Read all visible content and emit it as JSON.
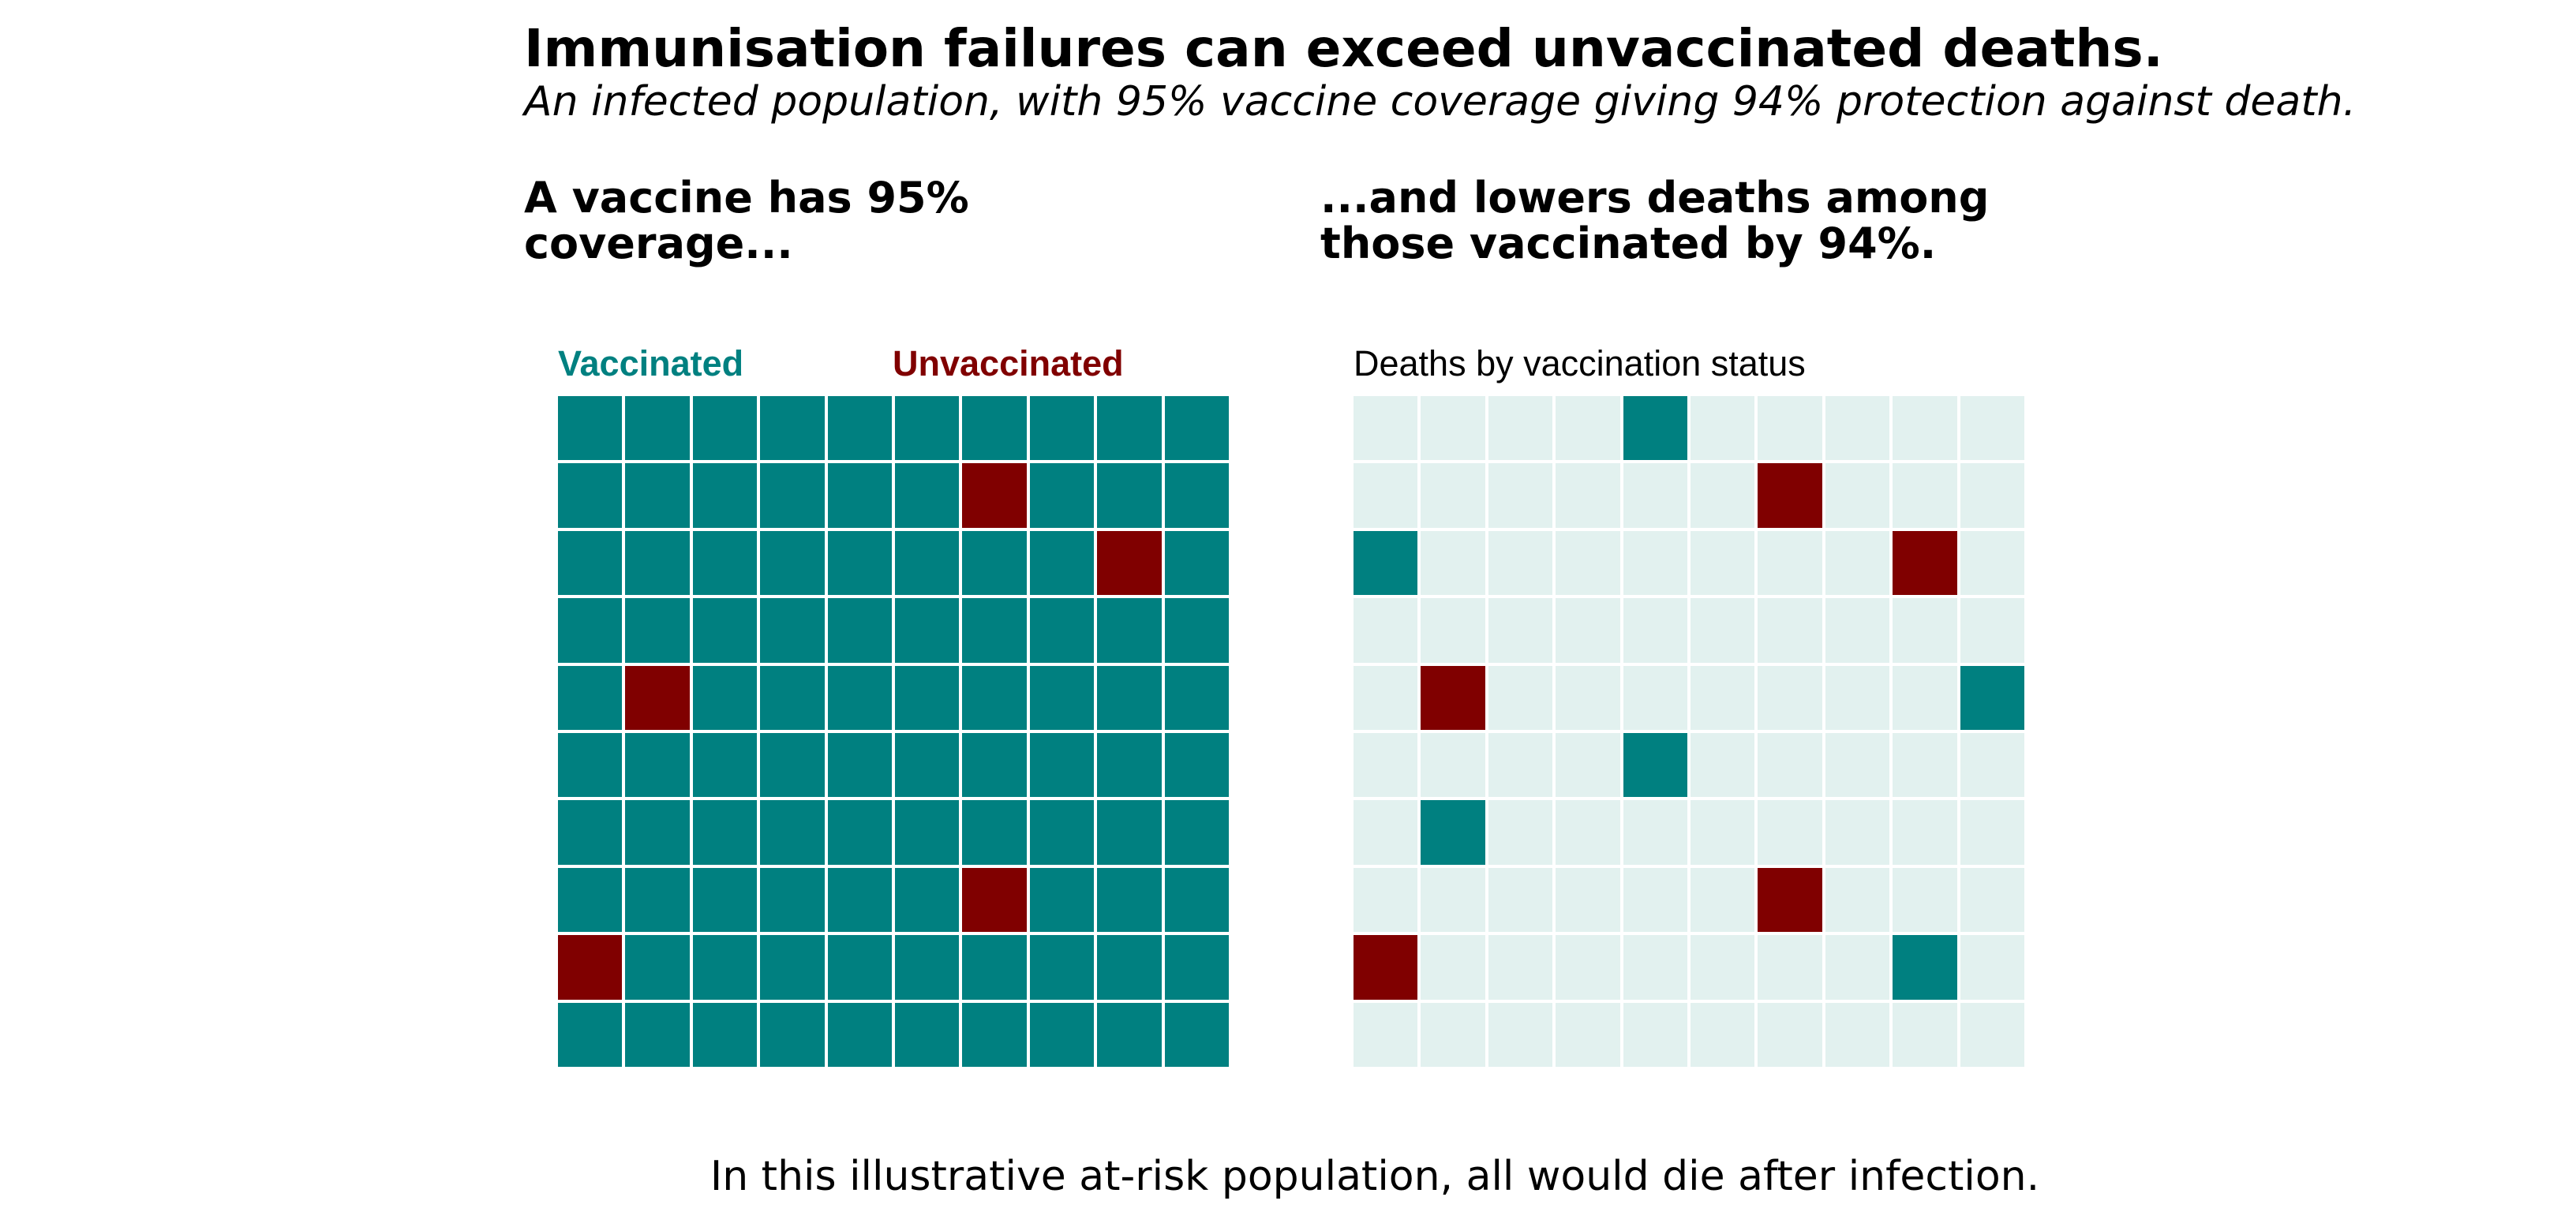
{
  "title": "Immunisation failures can exceed unvaccinated deaths.",
  "subtitle": "An infected population, with 95% vaccine coverage giving 94% protection against death.",
  "panels": {
    "left": {
      "heading_line1": "A vaccine has 95%",
      "heading_line2": "coverage...",
      "legend_vaccinated": "Vaccinated",
      "legend_unvaccinated": "Unvaccinated"
    },
    "right": {
      "heading_line1": "...and lowers deaths among",
      "heading_line2": "those vaccinated by 94%.",
      "caption": "Deaths by vaccination status"
    }
  },
  "footer": "In this illustrative at-risk population, all would die after infection.",
  "colors": {
    "vaccinated": "#008080",
    "unvaccinated": "#800000",
    "survived": "#e2f1ef"
  },
  "chart_data": [
    {
      "type": "waffle",
      "rows": 10,
      "cols": 10,
      "legend": [
        "Vaccinated",
        "Unvaccinated"
      ],
      "counts": {
        "Vaccinated": 95,
        "Unvaccinated": 5
      },
      "unvaccinated_cells": [
        [
          1,
          6
        ],
        [
          2,
          8
        ],
        [
          4,
          1
        ],
        [
          7,
          6
        ],
        [
          8,
          0
        ]
      ]
    },
    {
      "type": "waffle",
      "rows": 10,
      "cols": 10,
      "caption": "Deaths by vaccination status",
      "counts": {
        "vaccinated_deaths": 6,
        "unvaccinated_deaths": 5,
        "no_death": 89
      },
      "vaccinated_death_cells": [
        [
          0,
          4
        ],
        [
          2,
          0
        ],
        [
          4,
          9
        ],
        [
          5,
          4
        ],
        [
          6,
          1
        ],
        [
          8,
          8
        ]
      ],
      "unvaccinated_death_cells": [
        [
          1,
          6
        ],
        [
          2,
          8
        ],
        [
          4,
          1
        ],
        [
          7,
          6
        ],
        [
          8,
          0
        ]
      ]
    }
  ]
}
